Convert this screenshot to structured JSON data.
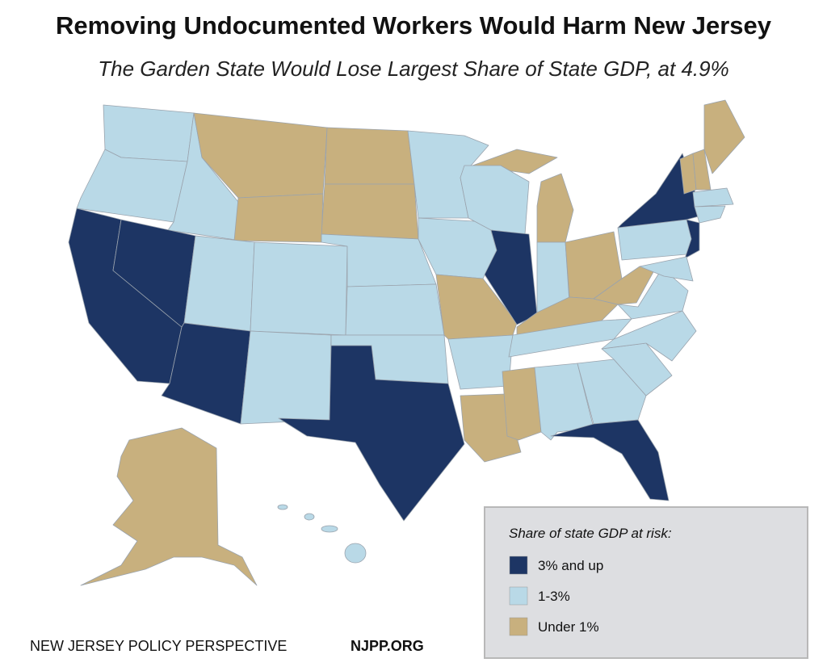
{
  "header": {
    "title": "Removing Undocumented Workers Would Harm New Jersey",
    "subtitle": "The Garden State Would Lose Largest Share of State GDP, at 4.9%"
  },
  "legend": {
    "title": "Share of state GDP at risk:",
    "items": [
      {
        "label": "3% and up",
        "color": "#1d3564"
      },
      {
        "label": "1-3%",
        "color": "#b9d9e7"
      },
      {
        "label": "Under 1%",
        "color": "#c8b07e"
      }
    ]
  },
  "footer": {
    "organization": "NEW JERSEY POLICY PERSPECTIVE",
    "website": "NJPP.ORG"
  }
}
